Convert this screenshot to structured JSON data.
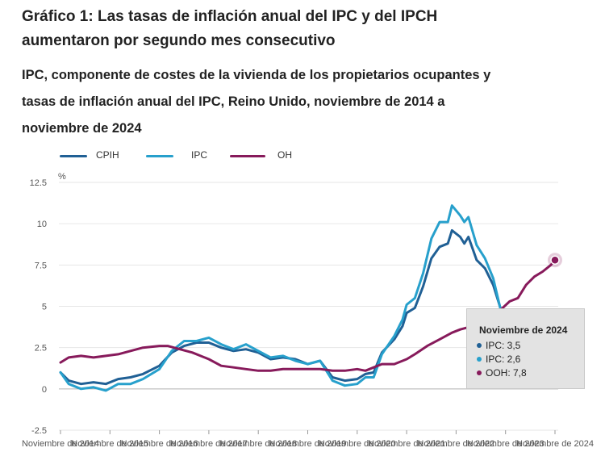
{
  "title": "Gráfico 1: Las tasas de inflación anual del IPC y del IPCH aumentaron por segundo mes consecutivo",
  "subtitle": "IPC, componente de costes de la vivienda de los propietarios ocupantes y tasas de inflación anual del IPC, Reino Unido, noviembre de 2014 a noviembre de 2024",
  "tooltip": {
    "title": "Noviembre de 2024",
    "rows": [
      "IPC: 3,5",
      "IPC: 2,6",
      "OOH: 7,8"
    ]
  },
  "chart_data": {
    "type": "line",
    "ylabel": "%",
    "ylim": [
      -2.5,
      12.5
    ],
    "yticks": [
      "12.5",
      "10",
      "7.5",
      "5",
      "2.5",
      "0",
      "-2.5"
    ],
    "xlabels": [
      "Noviembre de 2014",
      "Noviembre de 2015",
      "Noviembre de 2016",
      "Noviembre de 2017",
      "Noviembre de 2018",
      "Noviembre de 2019",
      "Noviembre de 2020",
      "Noviembre de 2021",
      "Noviembre de 2022",
      "Noviembre de 2023",
      "Noviembre de 2024"
    ],
    "grid": true,
    "legend": "top-left",
    "x_start": "2014-11",
    "x_end": "2024-11",
    "series": [
      {
        "name": "CPIH",
        "color": "#206095",
        "points": [
          [
            "2014-11",
            1.0
          ],
          [
            "2015-01",
            0.5
          ],
          [
            "2015-04",
            0.3
          ],
          [
            "2015-07",
            0.4
          ],
          [
            "2015-10",
            0.3
          ],
          [
            "2016-01",
            0.6
          ],
          [
            "2016-04",
            0.7
          ],
          [
            "2016-07",
            0.9
          ],
          [
            "2016-11",
            1.4
          ],
          [
            "2017-02",
            2.2
          ],
          [
            "2017-05",
            2.6
          ],
          [
            "2017-08",
            2.8
          ],
          [
            "2017-11",
            2.8
          ],
          [
            "2018-02",
            2.5
          ],
          [
            "2018-05",
            2.3
          ],
          [
            "2018-08",
            2.4
          ],
          [
            "2018-11",
            2.2
          ],
          [
            "2019-02",
            1.8
          ],
          [
            "2019-05",
            1.9
          ],
          [
            "2019-08",
            1.8
          ],
          [
            "2019-11",
            1.5
          ],
          [
            "2020-02",
            1.7
          ],
          [
            "2020-05",
            0.7
          ],
          [
            "2020-08",
            0.5
          ],
          [
            "2020-11",
            0.6
          ],
          [
            "2021-01",
            0.9
          ],
          [
            "2021-03",
            1.0
          ],
          [
            "2021-05",
            2.2
          ],
          [
            "2021-08",
            3.0
          ],
          [
            "2021-10",
            3.8
          ],
          [
            "2021-11",
            4.6
          ],
          [
            "2022-01",
            4.9
          ],
          [
            "2022-03",
            6.2
          ],
          [
            "2022-05",
            7.9
          ],
          [
            "2022-07",
            8.6
          ],
          [
            "2022-09",
            8.8
          ],
          [
            "2022-10",
            9.6
          ],
          [
            "2022-12",
            9.2
          ],
          [
            "2023-01",
            8.8
          ],
          [
            "2023-02",
            9.2
          ],
          [
            "2023-04",
            7.8
          ],
          [
            "2023-06",
            7.3
          ],
          [
            "2023-08",
            6.3
          ],
          [
            "2023-10",
            4.7
          ],
          [
            "2023-12",
            4.2
          ],
          [
            "2024-02",
            3.8
          ],
          [
            "2024-04",
            3.0
          ],
          [
            "2024-06",
            2.8
          ],
          [
            "2024-08",
            3.1
          ],
          [
            "2024-10",
            3.2
          ],
          [
            "2024-11",
            3.5
          ]
        ]
      },
      {
        "name": "IPC",
        "color": "#27a0cc",
        "points": [
          [
            "2014-11",
            1.0
          ],
          [
            "2015-01",
            0.3
          ],
          [
            "2015-04",
            0.0
          ],
          [
            "2015-07",
            0.1
          ],
          [
            "2015-10",
            -0.1
          ],
          [
            "2016-01",
            0.3
          ],
          [
            "2016-04",
            0.3
          ],
          [
            "2016-07",
            0.6
          ],
          [
            "2016-11",
            1.2
          ],
          [
            "2017-02",
            2.3
          ],
          [
            "2017-05",
            2.9
          ],
          [
            "2017-08",
            2.9
          ],
          [
            "2017-11",
            3.1
          ],
          [
            "2018-02",
            2.7
          ],
          [
            "2018-05",
            2.4
          ],
          [
            "2018-08",
            2.7
          ],
          [
            "2018-11",
            2.3
          ],
          [
            "2019-02",
            1.9
          ],
          [
            "2019-05",
            2.0
          ],
          [
            "2019-08",
            1.7
          ],
          [
            "2019-11",
            1.5
          ],
          [
            "2020-02",
            1.7
          ],
          [
            "2020-05",
            0.5
          ],
          [
            "2020-08",
            0.2
          ],
          [
            "2020-11",
            0.3
          ],
          [
            "2021-01",
            0.7
          ],
          [
            "2021-03",
            0.7
          ],
          [
            "2021-05",
            2.1
          ],
          [
            "2021-08",
            3.2
          ],
          [
            "2021-10",
            4.2
          ],
          [
            "2021-11",
            5.1
          ],
          [
            "2022-01",
            5.5
          ],
          [
            "2022-03",
            7.0
          ],
          [
            "2022-05",
            9.1
          ],
          [
            "2022-07",
            10.1
          ],
          [
            "2022-09",
            10.1
          ],
          [
            "2022-10",
            11.1
          ],
          [
            "2022-12",
            10.5
          ],
          [
            "2023-01",
            10.1
          ],
          [
            "2023-02",
            10.4
          ],
          [
            "2023-04",
            8.7
          ],
          [
            "2023-06",
            7.9
          ],
          [
            "2023-08",
            6.7
          ],
          [
            "2023-10",
            4.6
          ],
          [
            "2023-12",
            4.0
          ],
          [
            "2024-02",
            3.4
          ],
          [
            "2024-04",
            2.3
          ],
          [
            "2024-06",
            2.0
          ],
          [
            "2024-08",
            2.2
          ],
          [
            "2024-10",
            2.3
          ],
          [
            "2024-11",
            2.6
          ]
        ]
      },
      {
        "name": "OH",
        "color": "#871a5b",
        "points": [
          [
            "2014-11",
            1.6
          ],
          [
            "2015-01",
            1.9
          ],
          [
            "2015-04",
            2.0
          ],
          [
            "2015-07",
            1.9
          ],
          [
            "2015-10",
            2.0
          ],
          [
            "2016-01",
            2.1
          ],
          [
            "2016-04",
            2.3
          ],
          [
            "2016-07",
            2.5
          ],
          [
            "2016-11",
            2.6
          ],
          [
            "2017-01",
            2.6
          ],
          [
            "2017-04",
            2.4
          ],
          [
            "2017-07",
            2.2
          ],
          [
            "2017-11",
            1.8
          ],
          [
            "2018-02",
            1.4
          ],
          [
            "2018-05",
            1.3
          ],
          [
            "2018-08",
            1.2
          ],
          [
            "2018-11",
            1.1
          ],
          [
            "2019-02",
            1.1
          ],
          [
            "2019-05",
            1.2
          ],
          [
            "2019-08",
            1.2
          ],
          [
            "2019-11",
            1.2
          ],
          [
            "2020-02",
            1.2
          ],
          [
            "2020-05",
            1.1
          ],
          [
            "2020-08",
            1.1
          ],
          [
            "2020-11",
            1.2
          ],
          [
            "2021-01",
            1.1
          ],
          [
            "2021-03",
            1.3
          ],
          [
            "2021-05",
            1.5
          ],
          [
            "2021-08",
            1.5
          ],
          [
            "2021-11",
            1.8
          ],
          [
            "2022-01",
            2.1
          ],
          [
            "2022-04",
            2.6
          ],
          [
            "2022-07",
            3.0
          ],
          [
            "2022-10",
            3.4
          ],
          [
            "2022-12",
            3.6
          ],
          [
            "2023-03",
            3.8
          ],
          [
            "2023-06",
            4.0
          ],
          [
            "2023-09",
            4.6
          ],
          [
            "2023-12",
            5.3
          ],
          [
            "2024-02",
            5.5
          ],
          [
            "2024-04",
            6.3
          ],
          [
            "2024-06",
            6.8
          ],
          [
            "2024-08",
            7.1
          ],
          [
            "2024-10",
            7.5
          ],
          [
            "2024-11",
            7.8
          ]
        ]
      }
    ]
  }
}
